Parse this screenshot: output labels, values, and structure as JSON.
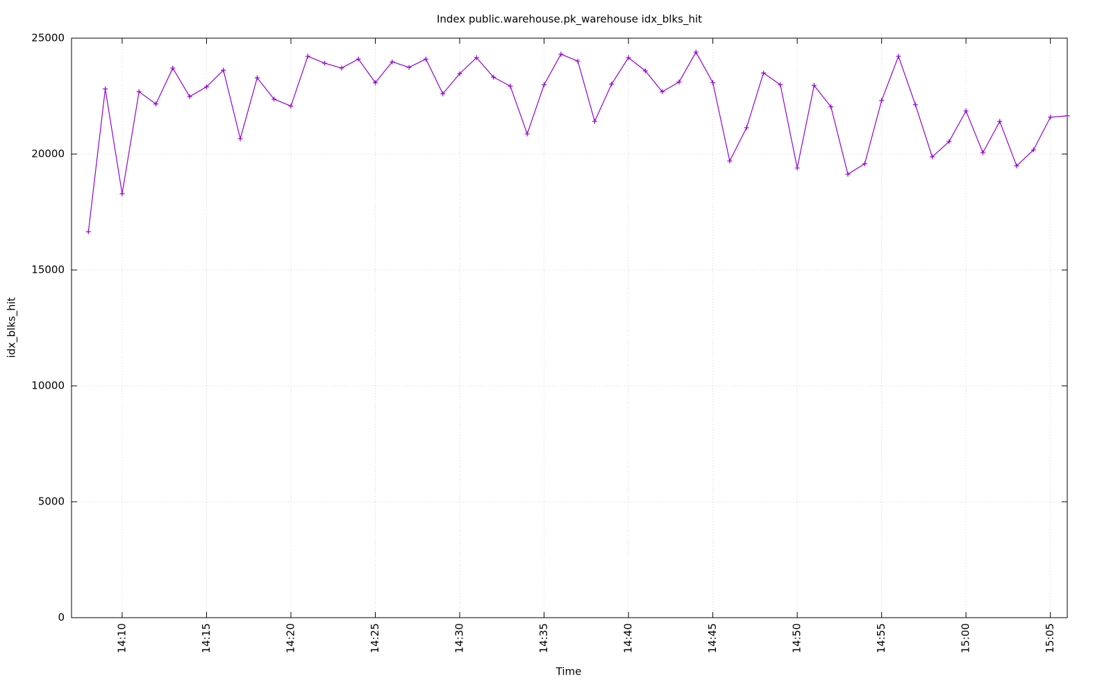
{
  "chart_data": {
    "type": "line",
    "title": "Index public.warehouse.pk_warehouse idx_blks_hit",
    "x_label": "Time",
    "y_label": "idx_blks_hit",
    "x": [
      "14:08",
      "14:09",
      "14:10",
      "14:11",
      "14:12",
      "14:13",
      "14:14",
      "14:15",
      "14:16",
      "14:17",
      "14:18",
      "14:19",
      "14:20",
      "14:21",
      "14:22",
      "14:23",
      "14:24",
      "14:25",
      "14:26",
      "14:27",
      "14:28",
      "14:29",
      "14:30",
      "14:31",
      "14:32",
      "14:33",
      "14:34",
      "14:35",
      "14:36",
      "14:37",
      "14:38",
      "14:39",
      "14:40",
      "14:41",
      "14:42",
      "14:43",
      "14:44",
      "14:45",
      "14:46",
      "14:47",
      "14:48",
      "14:49",
      "14:50",
      "14:51",
      "14:52",
      "14:53",
      "14:54",
      "14:55",
      "14:56",
      "14:57",
      "14:58",
      "14:59",
      "15:00",
      "15:01",
      "15:02",
      "15:03",
      "15:04",
      "15:05",
      "15:06"
    ],
    "series": [
      {
        "name": "idx_blks_hit",
        "color": "#9400d3",
        "values": [
          16650,
          22810,
          18290,
          22690,
          22160,
          23710,
          22480,
          22900,
          23620,
          20660,
          23290,
          22370,
          22070,
          24220,
          23920,
          23710,
          24100,
          23080,
          23980,
          23740,
          24100,
          22600,
          23470,
          24160,
          23320,
          22930,
          20870,
          22990,
          24310,
          24010,
          21410,
          23020,
          24160,
          23590,
          22690,
          23110,
          24400,
          23080,
          19700,
          21140,
          23500,
          22990,
          19400,
          22960,
          22040,
          19130,
          19580,
          22310,
          24220,
          22130,
          19880,
          20540,
          21860,
          20060,
          21410,
          19490,
          20180,
          21590,
          21650
        ]
      }
    ],
    "xlim": [
      "14:07",
      "15:06"
    ],
    "xticks": [
      "14:10",
      "14:15",
      "14:20",
      "14:25",
      "14:30",
      "14:35",
      "14:40",
      "14:45",
      "14:50",
      "14:55",
      "15:00",
      "15:05"
    ],
    "ylim": [
      0,
      25000
    ],
    "yticks": [
      0,
      5000,
      10000,
      15000,
      20000,
      25000
    ],
    "grid": true
  }
}
